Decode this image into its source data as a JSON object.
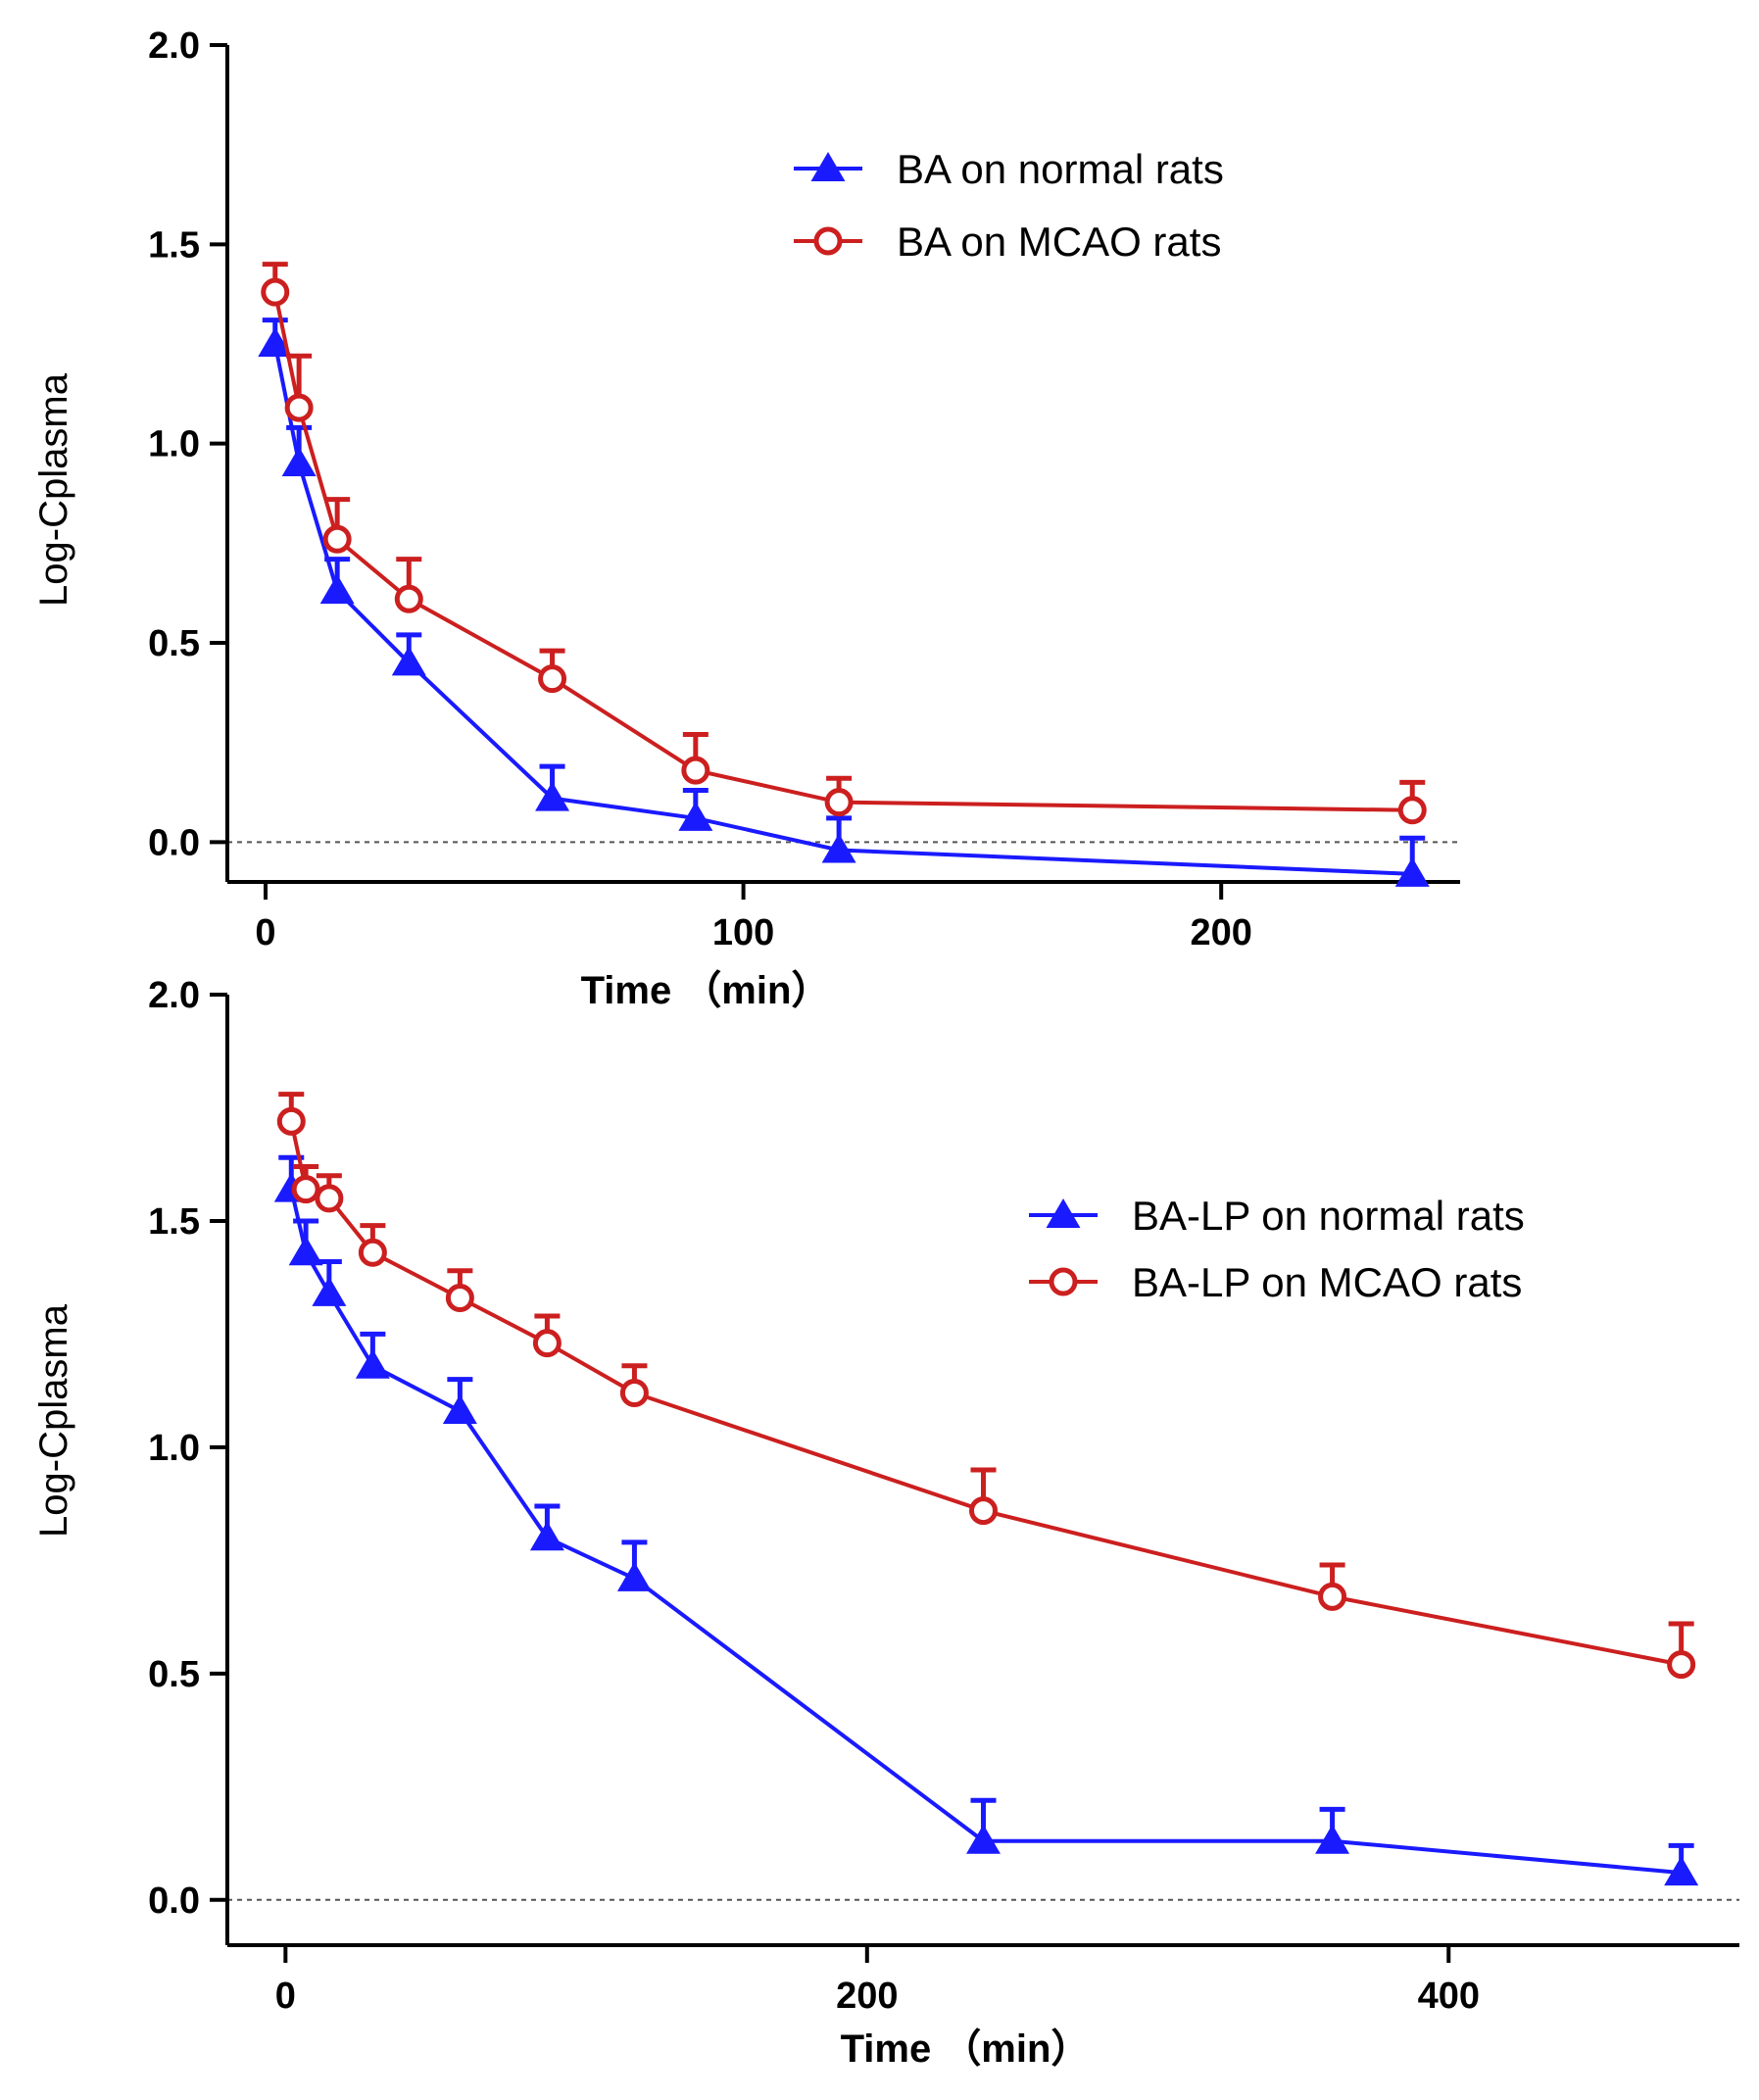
{
  "colors": {
    "normal": "#1a1aff",
    "mcao": "#cc1f1f"
  },
  "chart_data": [
    {
      "type": "line",
      "xlabel": "Time （min）",
      "ylabel": "Log-Cplasma",
      "xlim": [
        -8,
        250
      ],
      "ylim": [
        -0.1,
        2.0
      ],
      "xticks": [
        "0",
        "100",
        "200"
      ],
      "yticks": [
        "0.0",
        "0.5",
        "1.0",
        "1.5",
        "2.0"
      ],
      "zero_line": true,
      "legend_position": "top-right",
      "series": [
        {
          "name": "BA  on normal rats",
          "color_key": "normal",
          "marker": "triangle",
          "x": [
            2,
            7,
            15,
            30,
            60,
            90,
            120,
            240
          ],
          "y": [
            1.25,
            0.95,
            0.63,
            0.45,
            0.11,
            0.06,
            -0.02,
            -0.08
          ],
          "error": [
            0.06,
            0.09,
            0.08,
            0.07,
            0.08,
            0.07,
            0.08,
            0.09
          ]
        },
        {
          "name": "BA on MCAO rats",
          "color_key": "mcao",
          "marker": "circle",
          "x": [
            2,
            7,
            15,
            30,
            60,
            90,
            120,
            240
          ],
          "y": [
            1.38,
            1.09,
            0.76,
            0.61,
            0.41,
            0.18,
            0.1,
            0.08
          ],
          "error": [
            0.07,
            0.13,
            0.1,
            0.1,
            0.07,
            0.09,
            0.06,
            0.07
          ]
        }
      ]
    },
    {
      "type": "line",
      "xlabel": "Time （min）",
      "ylabel": "Log-Cplasma",
      "xlim": [
        -20,
        500
      ],
      "ylim": [
        -0.1,
        2.0
      ],
      "xticks": [
        "0",
        "200",
        "400"
      ],
      "yticks": [
        "0.0",
        "0.5",
        "1.0",
        "1.5",
        "2.0"
      ],
      "zero_line": true,
      "legend_position": "right",
      "series": [
        {
          "name": "BA-LP  on normal rats",
          "color_key": "normal",
          "marker": "triangle",
          "x": [
            2,
            7,
            15,
            30,
            60,
            90,
            120,
            240,
            360,
            480
          ],
          "y": [
            1.57,
            1.43,
            1.34,
            1.18,
            1.08,
            0.8,
            0.71,
            0.13,
            0.13,
            0.06
          ],
          "error": [
            0.07,
            0.07,
            0.07,
            0.07,
            0.07,
            0.07,
            0.08,
            0.09,
            0.07,
            0.06
          ]
        },
        {
          "name": "BA-LP on MCAO rats",
          "color_key": "mcao",
          "marker": "circle",
          "x": [
            2,
            7,
            15,
            30,
            60,
            90,
            120,
            240,
            360,
            480
          ],
          "y": [
            1.72,
            1.57,
            1.55,
            1.43,
            1.33,
            1.23,
            1.12,
            0.86,
            0.67,
            0.52
          ],
          "error": [
            0.06,
            0.05,
            0.05,
            0.06,
            0.06,
            0.06,
            0.06,
            0.09,
            0.07,
            0.09
          ]
        }
      ]
    }
  ]
}
